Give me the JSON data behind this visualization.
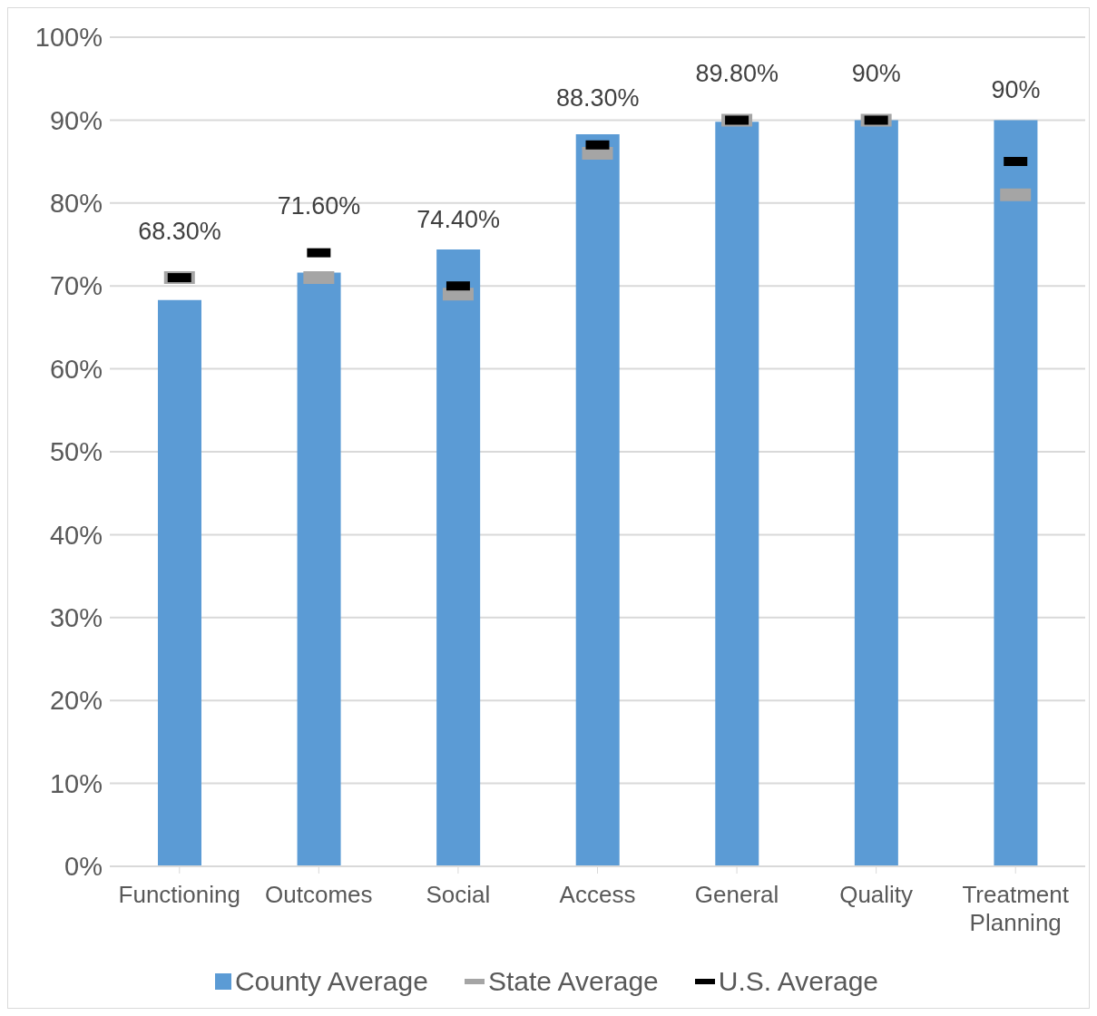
{
  "chart_data": {
    "type": "bar",
    "categories": [
      "Functioning",
      "Outcomes",
      "Social",
      "Access",
      "General",
      "Quality",
      "Treatment Planning"
    ],
    "series": [
      {
        "name": "County Average",
        "type": "bar",
        "color": "#5b9bd5",
        "values": [
          68.3,
          71.6,
          74.4,
          88.3,
          89.8,
          90,
          90
        ],
        "value_labels": [
          "68.30%",
          "71.60%",
          "74.40%",
          "88.30%",
          "89.80%",
          "90%",
          "90%"
        ]
      },
      {
        "name": "State Average",
        "type": "scatter",
        "color": "#a5a5a5",
        "values": [
          71,
          71,
          69,
          86,
          90,
          90,
          81
        ]
      },
      {
        "name": "U.S. Average",
        "type": "scatter",
        "color": "#000000",
        "values": [
          71,
          74,
          70,
          87,
          90,
          90,
          85
        ]
      }
    ],
    "ylim": [
      0,
      100
    ],
    "yticks": [
      {
        "value": 0,
        "label": "0%"
      },
      {
        "value": 10,
        "label": "10%"
      },
      {
        "value": 20,
        "label": "20%"
      },
      {
        "value": 30,
        "label": "30%"
      },
      {
        "value": 40,
        "label": "40%"
      },
      {
        "value": 50,
        "label": "50%"
      },
      {
        "value": 60,
        "label": "60%"
      },
      {
        "value": 70,
        "label": "70%"
      },
      {
        "value": 80,
        "label": "80%"
      },
      {
        "value": 90,
        "label": "90%"
      },
      {
        "value": 100,
        "label": "100%"
      }
    ],
    "grid": "y",
    "legend": "bottom"
  }
}
